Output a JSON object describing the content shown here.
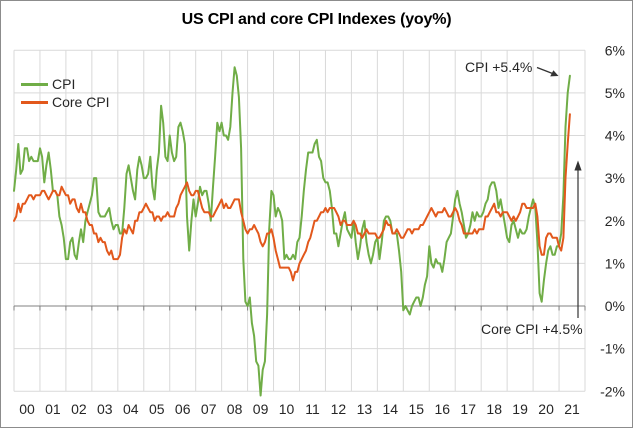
{
  "title": "US CPI and core CPI Indexes (yoy%)",
  "colors": {
    "cpi_line": "#70AD47",
    "core_line": "#E2581C",
    "gridline": "#D9D9D9",
    "axis": "#808080",
    "tick_text": "#262626",
    "annotation_arrow": "#333333",
    "outer_border": "#8C8C8C"
  },
  "chart_data": {
    "type": "line",
    "title": "US CPI and core CPI Indexes (yoy%)",
    "x_unit": "monthly",
    "x_start": "2000-01",
    "x_end": "2021-06",
    "x_tick_labels": [
      "00",
      "01",
      "02",
      "03",
      "04",
      "05",
      "06",
      "07",
      "08",
      "09",
      "10",
      "11",
      "12",
      "13",
      "14",
      "15",
      "16",
      "17",
      "18",
      "19",
      "20",
      "21"
    ],
    "y_tick_labels": [
      "6%",
      "5%",
      "4%",
      "3%",
      "2%",
      "1%",
      "0%",
      "-1%",
      "-2%"
    ],
    "ylim": [
      -2,
      6
    ],
    "grid": true,
    "legend_position": "top-left",
    "annotations": [
      {
        "text": "CPI +5.4%",
        "target_series": "CPI",
        "target_x": "2021-06",
        "target_value": 5.4
      },
      {
        "text": "Core CPI +4.5%",
        "target_series": "Core CPI",
        "target_x": "2021-06",
        "target_value": 4.5
      }
    ],
    "series": [
      {
        "name": "CPI",
        "color": "#70AD47",
        "values": [
          2.7,
          3.2,
          3.8,
          3.1,
          3.2,
          3.7,
          3.7,
          3.4,
          3.5,
          3.4,
          3.4,
          3.4,
          3.7,
          3.5,
          2.9,
          3.3,
          3.6,
          3.2,
          2.7,
          2.7,
          2.6,
          2.1,
          1.9,
          1.6,
          1.1,
          1.1,
          1.5,
          1.6,
          1.2,
          1.1,
          1.5,
          1.8,
          1.5,
          2.0,
          2.2,
          2.4,
          2.6,
          3.0,
          3.0,
          2.2,
          2.1,
          2.1,
          2.1,
          2.2,
          2.3,
          2.0,
          1.8,
          1.9,
          1.9,
          1.7,
          1.7,
          2.3,
          3.1,
          3.3,
          3.0,
          2.7,
          2.5,
          3.2,
          3.5,
          3.3,
          3.0,
          3.0,
          3.1,
          3.5,
          2.8,
          2.5,
          3.2,
          3.6,
          4.7,
          4.3,
          3.5,
          3.4,
          4.0,
          3.6,
          3.4,
          3.5,
          4.2,
          4.3,
          4.1,
          3.8,
          2.1,
          1.3,
          2.0,
          2.5,
          2.1,
          2.4,
          2.8,
          2.6,
          2.7,
          2.7,
          2.4,
          2.0,
          2.8,
          3.5,
          4.3,
          4.1,
          4.3,
          4.0,
          4.0,
          3.9,
          4.2,
          5.0,
          5.6,
          5.4,
          4.9,
          3.7,
          1.1,
          0.1,
          0.0,
          0.2,
          -0.4,
          -0.7,
          -1.3,
          -1.4,
          -2.1,
          -1.5,
          -1.3,
          -0.2,
          1.8,
          2.7,
          2.6,
          2.1,
          2.3,
          2.2,
          2.0,
          1.1,
          1.2,
          1.1,
          1.1,
          1.2,
          1.1,
          1.5,
          1.6,
          2.1,
          2.7,
          3.2,
          3.6,
          3.6,
          3.6,
          3.8,
          3.9,
          3.5,
          3.4,
          3.0,
          2.9,
          2.9,
          2.7,
          2.3,
          1.7,
          1.7,
          1.4,
          1.7,
          2.0,
          2.2,
          1.8,
          1.7,
          1.6,
          2.0,
          1.5,
          1.1,
          1.4,
          1.8,
          2.0,
          1.5,
          1.2,
          1.0,
          1.2,
          1.5,
          1.6,
          1.1,
          1.5,
          2.0,
          2.1,
          2.1,
          2.0,
          1.7,
          1.7,
          1.7,
          1.3,
          0.8,
          -0.1,
          0.0,
          -0.1,
          -0.2,
          0.0,
          0.1,
          0.2,
          0.2,
          0.0,
          0.2,
          0.5,
          0.7,
          1.4,
          1.0,
          0.9,
          1.1,
          1.0,
          1.0,
          0.8,
          1.1,
          1.5,
          1.6,
          1.7,
          2.1,
          2.5,
          2.7,
          2.4,
          2.2,
          1.9,
          1.6,
          1.7,
          1.9,
          2.2,
          2.0,
          2.2,
          2.1,
          2.1,
          2.2,
          2.4,
          2.5,
          2.8,
          2.9,
          2.9,
          2.7,
          2.3,
          2.5,
          2.2,
          1.9,
          1.6,
          1.5,
          1.9,
          2.0,
          1.8,
          1.6,
          1.8,
          1.7,
          1.7,
          1.8,
          2.1,
          2.3,
          2.5,
          2.3,
          1.5,
          0.3,
          0.1,
          0.6,
          1.0,
          1.3,
          1.4,
          1.2,
          1.2,
          1.4,
          1.4,
          1.7,
          2.6,
          4.2,
          5.0,
          5.4
        ]
      },
      {
        "name": "Core CPI",
        "color": "#E2581C",
        "values": [
          2.0,
          2.1,
          2.4,
          2.2,
          2.4,
          2.4,
          2.5,
          2.6,
          2.6,
          2.5,
          2.6,
          2.6,
          2.6,
          2.7,
          2.7,
          2.6,
          2.5,
          2.6,
          2.7,
          2.7,
          2.6,
          2.6,
          2.8,
          2.7,
          2.6,
          2.6,
          2.4,
          2.5,
          2.5,
          2.3,
          2.2,
          2.4,
          2.2,
          2.2,
          2.0,
          1.9,
          1.9,
          1.7,
          1.7,
          1.5,
          1.6,
          1.5,
          1.5,
          1.3,
          1.2,
          1.3,
          1.1,
          1.1,
          1.1,
          1.2,
          1.6,
          1.8,
          1.7,
          1.9,
          1.8,
          1.7,
          2.0,
          2.0,
          2.2,
          2.2,
          2.3,
          2.4,
          2.3,
          2.2,
          2.2,
          2.0,
          2.1,
          2.1,
          2.0,
          2.1,
          2.1,
          2.2,
          2.1,
          2.1,
          2.1,
          2.3,
          2.4,
          2.6,
          2.7,
          2.8,
          2.9,
          2.7,
          2.6,
          2.6,
          2.7,
          2.7,
          2.5,
          2.3,
          2.2,
          2.2,
          2.2,
          2.1,
          2.1,
          2.2,
          2.3,
          2.4,
          2.5,
          2.3,
          2.4,
          2.3,
          2.3,
          2.4,
          2.5,
          2.5,
          2.5,
          2.2,
          2.0,
          1.8,
          1.7,
          1.8,
          1.8,
          1.9,
          1.8,
          1.7,
          1.5,
          1.4,
          1.5,
          1.7,
          1.7,
          1.8,
          1.6,
          1.3,
          1.1,
          0.9,
          0.9,
          0.9,
          0.9,
          0.9,
          0.8,
          0.6,
          0.8,
          0.8,
          1.0,
          1.1,
          1.2,
          1.3,
          1.5,
          1.6,
          1.8,
          2.0,
          2.0,
          2.1,
          2.2,
          2.2,
          2.3,
          2.2,
          2.3,
          2.3,
          2.3,
          2.2,
          2.1,
          1.9,
          2.0,
          2.0,
          1.9,
          1.9,
          1.9,
          2.0,
          1.9,
          1.7,
          1.7,
          1.6,
          1.7,
          1.8,
          1.7,
          1.7,
          1.7,
          1.7,
          1.6,
          1.6,
          1.7,
          1.8,
          2.0,
          1.9,
          1.9,
          1.7,
          1.7,
          1.8,
          1.7,
          1.6,
          1.6,
          1.7,
          1.8,
          1.8,
          1.7,
          1.8,
          1.8,
          1.8,
          1.9,
          1.9,
          2.0,
          2.1,
          2.2,
          2.3,
          2.2,
          2.1,
          2.2,
          2.2,
          2.2,
          2.3,
          2.2,
          2.1,
          2.1,
          2.2,
          2.3,
          2.2,
          2.0,
          1.9,
          1.7,
          1.7,
          1.7,
          1.7,
          1.7,
          1.8,
          1.7,
          1.8,
          1.8,
          1.8,
          2.1,
          2.1,
          2.2,
          2.3,
          2.4,
          2.2,
          2.2,
          2.1,
          2.2,
          2.2,
          2.2,
          2.1,
          2.0,
          2.1,
          2.0,
          2.1,
          2.2,
          2.4,
          2.4,
          2.3,
          2.3,
          2.3,
          2.3,
          2.4,
          2.1,
          1.4,
          1.2,
          1.2,
          1.6,
          1.7,
          1.7,
          1.6,
          1.6,
          1.6,
          1.4,
          1.3,
          1.6,
          3.0,
          3.8,
          4.5
        ]
      }
    ]
  }
}
